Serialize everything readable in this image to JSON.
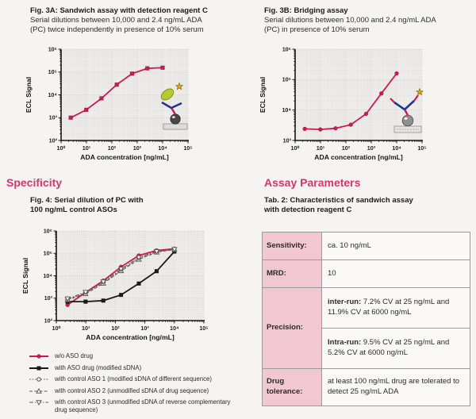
{
  "headings": {
    "specificity": "Specificity",
    "assay_parameters": "Assay Parameters"
  },
  "fig3a": {
    "title": "Fig. 3A: Sandwich assay with detection reagent C",
    "subtitle_line1": "Serial dilutions between 10,000 and 2.4 ng/mL ADA",
    "subtitle_line2": "(PC) twice independently in presence of 10% serum"
  },
  "fig3b": {
    "title": "Fig. 3B: Bridging assay",
    "subtitle_line1": "Serial dilutions between 10,000 and 2.4 ng/mL ADA",
    "subtitle_line2": "(PC) in presence of 10% serum"
  },
  "fig4": {
    "title_line1": "Fig. 4: Serial dilution of PC with",
    "title_line2": "100 ng/mL control ASOs"
  },
  "tab2": {
    "title_line1": "Tab. 2: Characteristics of sandwich assay",
    "title_line2": "with detection reagent C",
    "rows": {
      "sensitivity_label": "Sensitivity:",
      "sensitivity_value": "ca. 10 ng/mL",
      "mrd_label": "MRD:",
      "mrd_value": "10",
      "precision_label": "Precision:",
      "inter_run_label": "inter-run:",
      "inter_run_value": "7.2% CV at 25 ng/mL and 11.9% CV at 6000 ng/mL",
      "intra_run_label": "Intra-run:",
      "intra_run_value": "9.5% CV at 25 ng/mL and 5.2% CV at 6000 ng/mL",
      "drug_tolerance_label": "Drug tolerance:",
      "drug_tolerance_value": "at least 100 ng/mL drug are tolerated to detect 25 ng/mL ADA"
    }
  },
  "colors": {
    "accent_pink": "#d93768",
    "curve_red": "#cf1a4e",
    "series_black": "#1a1a1a",
    "series_grey": "#5a5a5a",
    "table_pink_bg": "#f1c7d2",
    "table_value_bg": "#faf9f7",
    "antibody_blue": "#22348c",
    "detection_green": "#b7c92e",
    "star_gold": "#d9a61e"
  },
  "chart_data": [
    {
      "id": "fig3a",
      "type": "line",
      "scale": "log-log",
      "title": "Fig. 3A: Sandwich assay with detection reagent C",
      "xlabel": "ADA concentration [ng/mL]",
      "ylabel": "ECL Signal",
      "xlim": [
        1,
        100000
      ],
      "ylim": [
        100,
        1000000
      ],
      "xticks": [
        "10⁰",
        "10¹",
        "10²",
        "10³",
        "10⁴",
        "10⁵"
      ],
      "yticks": [
        "10²",
        "10³",
        "10⁴",
        "10⁵",
        "10⁶"
      ],
      "grid": true,
      "icon": "sandwich-assay-icon",
      "x": [
        2.4,
        9.8,
        39,
        156,
        625,
        2500,
        10000
      ],
      "series": [
        {
          "name": "PC serial dilution",
          "color": "#cf1a4e",
          "marker": "square-filled",
          "line": "solid",
          "values": [
            1000,
            2200,
            7000,
            28000,
            85000,
            145000,
            155000
          ]
        }
      ]
    },
    {
      "id": "fig3b",
      "type": "line",
      "scale": "log-log",
      "title": "Fig. 3B: Bridging assay",
      "xlabel": "ADA concentration [ng/mL]",
      "ylabel": "ECL Signal",
      "xlim": [
        1,
        100000
      ],
      "ylim": [
        1000,
        1000000
      ],
      "xticks": [
        "10⁰",
        "10¹",
        "10²",
        "10³",
        "10⁴",
        "10⁵"
      ],
      "yticks": [
        "10³",
        "10⁴",
        "10⁵",
        "10⁶"
      ],
      "grid": true,
      "icon": "bridging-assay-icon",
      "x": [
        2.4,
        9.8,
        39,
        156,
        625,
        2500,
        10000
      ],
      "series": [
        {
          "name": "PC serial dilution",
          "color": "#cf1a4e",
          "marker": "circle-filled",
          "line": "solid",
          "values": [
            2400,
            2300,
            2500,
            3300,
            7500,
            35000,
            160000
          ]
        }
      ]
    },
    {
      "id": "fig4",
      "type": "line",
      "scale": "log-log",
      "title": "Fig. 4: Serial dilution of PC with 100 ng/mL control ASOs",
      "xlabel": "ADA concentration [ng/mL]",
      "ylabel": "ECL Signal",
      "xlim": [
        1,
        100000
      ],
      "ylim": [
        100,
        1000000
      ],
      "xticks": [
        "10⁰",
        "10¹",
        "10²",
        "10³",
        "10⁴",
        "10⁵"
      ],
      "yticks": [
        "10²",
        "10³",
        "10⁴",
        "10⁵",
        "10⁶"
      ],
      "grid": true,
      "legend_position": "below",
      "x": [
        2.4,
        9.8,
        39,
        156,
        625,
        2500,
        10000
      ],
      "series": [
        {
          "name": "w/o ASO drug",
          "color": "#cf1a4e",
          "marker": "circle-filled",
          "line": "solid",
          "values": [
            500,
            1800,
            6000,
            25000,
            80000,
            135000,
            160000
          ]
        },
        {
          "name": "with ASO drug (modified sDNA)",
          "color": "#1a1a1a",
          "marker": "square-filled",
          "line": "solid",
          "values": [
            700,
            700,
            780,
            1400,
            4500,
            16000,
            120000
          ]
        },
        {
          "name": "with control ASO 1 (modified sDNA of different sequence)",
          "color": "#5a5a5a",
          "marker": "circle-open",
          "line": "dotted",
          "values": [
            900,
            1700,
            5000,
            18000,
            60000,
            118000,
            150000
          ]
        },
        {
          "name": "with control ASO 2 (unmodified sDNA of drug sequence)",
          "color": "#5a5a5a",
          "marker": "triangle-open",
          "line": "dashed",
          "values": [
            850,
            1550,
            4600,
            16500,
            54000,
            112000,
            148000
          ]
        },
        {
          "name": "with control ASO 3 (unmodified sDNA of reverse complementary drug sequence)",
          "color": "#5a5a5a",
          "marker": "triangle-down-open",
          "line": "dashdot",
          "values": [
            950,
            1850,
            5400,
            20000,
            65000,
            122000,
            152000
          ]
        }
      ]
    }
  ]
}
